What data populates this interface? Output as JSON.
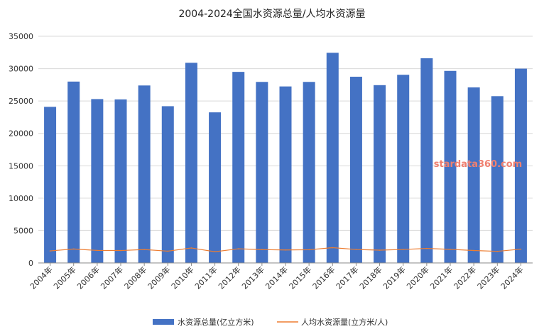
{
  "chart_data": {
    "type": "bar",
    "title": "2004-2024全国水资源总量/人均水资源量",
    "categories": [
      "2004年",
      "2005年",
      "2006年",
      "2007年",
      "2008年",
      "2009年",
      "2010年",
      "2011年",
      "2012年",
      "2013年",
      "2014年",
      "2015年",
      "2016年",
      "2017年",
      "2018年",
      "2019年",
      "2020年",
      "2021年",
      "2022年",
      "2023年",
      "2024年"
    ],
    "y_ticks": [
      "0",
      "5000",
      "10000",
      "15000",
      "20000",
      "25000",
      "30000",
      "35000"
    ],
    "ylim": [
      0,
      35000
    ],
    "grid": true,
    "legend_position": "bottom",
    "series": [
      {
        "name": "水资源总量(亿立方米)",
        "type": "bar",
        "color": "#4472c4",
        "values": [
          24100,
          28000,
          25300,
          25250,
          27400,
          24200,
          30900,
          23250,
          29500,
          27950,
          27250,
          27950,
          32450,
          28750,
          27450,
          29050,
          31600,
          29650,
          27100,
          25750,
          30000
        ]
      },
      {
        "name": "人均水资源量(立方米/人)",
        "type": "line",
        "color": "#ed7d31",
        "values": [
          1856,
          2152,
          1932,
          1916,
          2071,
          1816,
          2310,
          1730,
          2186,
          2060,
          1999,
          2039,
          2355,
          2075,
          1972,
          2078,
          2240,
          2098,
          1918,
          1789,
          2130
        ]
      }
    ]
  },
  "watermark": "stardata360.com"
}
